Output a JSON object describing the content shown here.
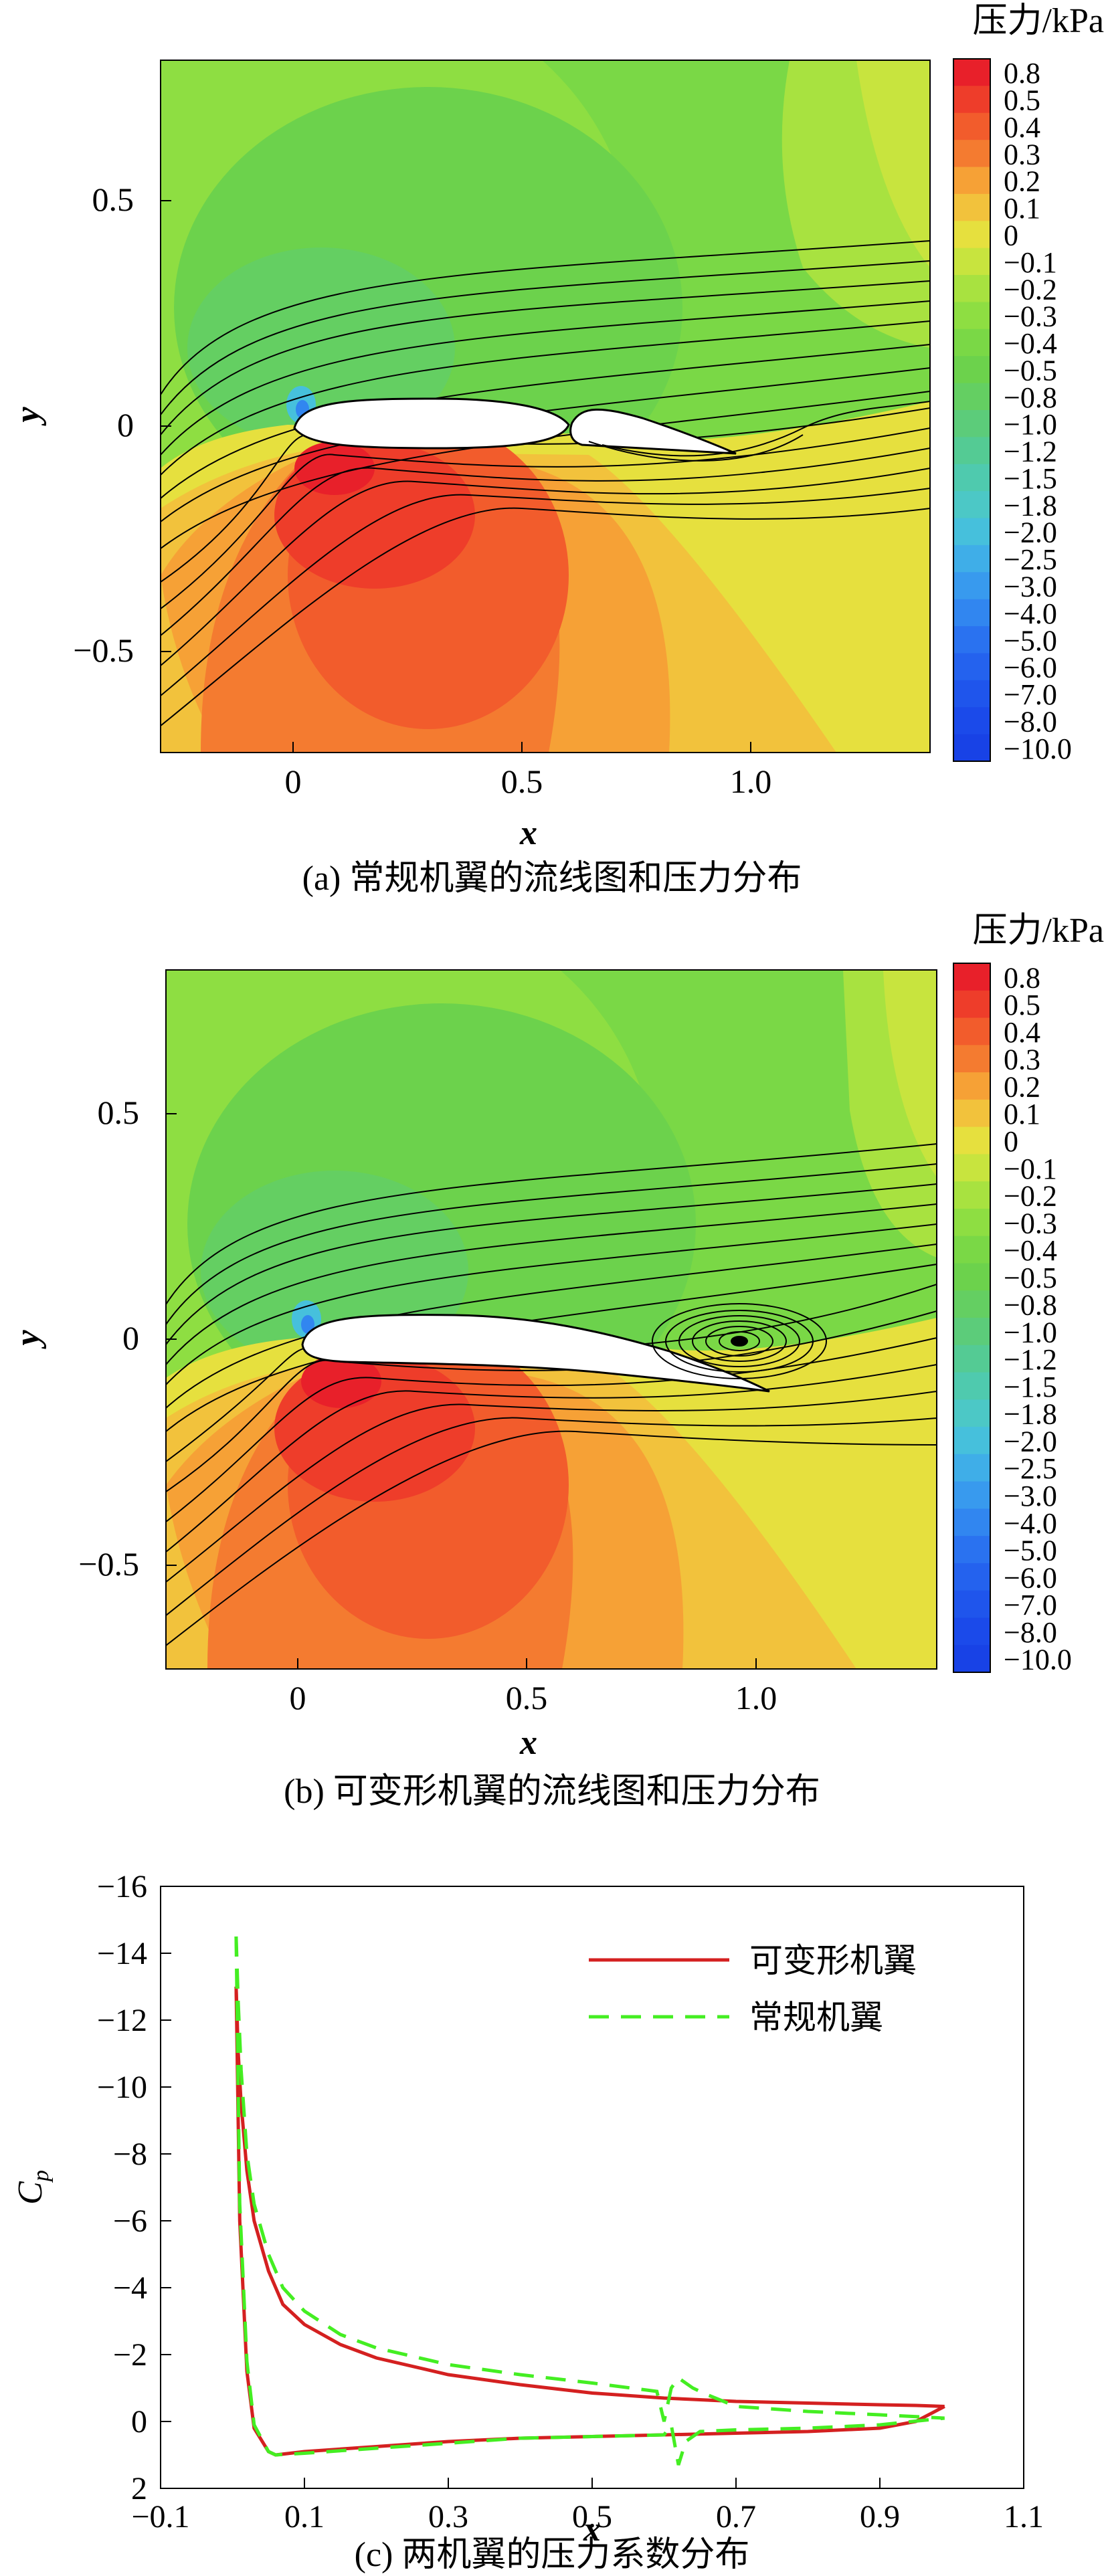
{
  "panels": {
    "a": {
      "caption": "(a) 常规机翼的流线图和压力分布",
      "colorbar_title": "压力/kPa",
      "xlabel": "x",
      "ylabel": "y",
      "xticks": [
        "0",
        "0.5",
        "1.0"
      ],
      "yticks": [
        "0.5",
        "0",
        "−0.5"
      ]
    },
    "b": {
      "caption": "(b) 可变形机翼的流线图和压力分布",
      "colorbar_title": "压力/kPa",
      "xlabel": "x",
      "ylabel": "y",
      "xticks": [
        "0",
        "0.5",
        "1.0"
      ],
      "yticks": [
        "0.5",
        "0",
        "−0.5"
      ]
    },
    "c": {
      "caption": "(c) 两机翼的压力系数分布"
    }
  },
  "colorbar": {
    "levels": [
      "0.8",
      "0.5",
      "0.4",
      "0.3",
      "0.2",
      "0.1",
      "0",
      "−0.1",
      "−0.2",
      "−0.3",
      "−0.4",
      "−0.5",
      "−0.8",
      "−1.0",
      "−1.2",
      "−1.5",
      "−1.8",
      "−2.0",
      "−2.5",
      "−3.0",
      "−4.0",
      "−5.0",
      "−6.0",
      "−7.0",
      "−8.0",
      "−10.0"
    ],
    "colors": [
      "#e8202a",
      "#ee3d2a",
      "#f25c2c",
      "#f47b30",
      "#f6a136",
      "#f2c23c",
      "#e6e03e",
      "#c8e43e",
      "#a8e240",
      "#8ede42",
      "#7ad846",
      "#6cd24c",
      "#64cf62",
      "#5ccc7a",
      "#54cb94",
      "#4fcaae",
      "#4cc8c6",
      "#46c0dc",
      "#3faee8",
      "#389aee",
      "#3186f0",
      "#2a72f0",
      "#2462ee",
      "#1f55ec",
      "#1b4aea",
      "#1842e6"
    ]
  },
  "chart_data": {
    "type": "line",
    "xlabel": "x",
    "ylabel": "C_p",
    "xlim": [
      -0.1,
      1.1
    ],
    "ylim": [
      -16,
      2
    ],
    "y_inverted": true,
    "xticks": [
      "−0.1",
      "0.1",
      "0.3",
      "0.5",
      "0.7",
      "0.9",
      "1.1"
    ],
    "yticks": [
      "−16",
      "−14",
      "−12",
      "−10",
      "−8",
      "−6",
      "−4",
      "−2",
      "0",
      "2"
    ],
    "legend_position": "top-right",
    "series": [
      {
        "name": "可变形机翼",
        "color": "#d42020",
        "style": "solid",
        "upper_x": [
          0.005,
          0.008,
          0.012,
          0.02,
          0.03,
          0.05,
          0.07,
          0.1,
          0.15,
          0.2,
          0.3,
          0.4,
          0.5,
          0.6,
          0.7,
          0.8,
          0.9,
          0.95,
          0.99
        ],
        "upper_y": [
          -13.0,
          -11.0,
          -9.5,
          -7.5,
          -6.0,
          -4.5,
          -3.5,
          -2.9,
          -2.3,
          -1.9,
          -1.4,
          -1.1,
          -0.85,
          -0.7,
          -0.6,
          -0.55,
          -0.5,
          -0.48,
          -0.45
        ],
        "lower_x": [
          0.005,
          0.01,
          0.02,
          0.03,
          0.05,
          0.06,
          0.1,
          0.2,
          0.3,
          0.4,
          0.5,
          0.6,
          0.7,
          0.8,
          0.9,
          0.95,
          0.99
        ],
        "lower_y": [
          -13.0,
          -6.0,
          -1.5,
          0.2,
          0.9,
          1.0,
          0.9,
          0.75,
          0.6,
          0.5,
          0.45,
          0.4,
          0.35,
          0.3,
          0.2,
          0.0,
          -0.45
        ]
      },
      {
        "name": "常规机翼",
        "color": "#44ee22",
        "style": "dashed",
        "upper_x": [
          0.005,
          0.008,
          0.012,
          0.02,
          0.03,
          0.05,
          0.07,
          0.1,
          0.15,
          0.2,
          0.3,
          0.4,
          0.5,
          0.59,
          0.6,
          0.61,
          0.62,
          0.64,
          0.66,
          0.7,
          0.8,
          0.9,
          0.99
        ],
        "upper_y": [
          -14.5,
          -12.5,
          -10.5,
          -8.0,
          -6.5,
          -5.0,
          -4.0,
          -3.3,
          -2.6,
          -2.2,
          -1.7,
          -1.4,
          -1.15,
          -0.9,
          0.0,
          -1.0,
          -1.3,
          -1.0,
          -0.8,
          -0.45,
          -0.3,
          -0.2,
          -0.1
        ],
        "lower_x": [
          0.005,
          0.01,
          0.02,
          0.03,
          0.05,
          0.06,
          0.1,
          0.2,
          0.3,
          0.4,
          0.5,
          0.6,
          0.61,
          0.62,
          0.63,
          0.65,
          0.7,
          0.8,
          0.9,
          0.99
        ],
        "lower_y": [
          -14.5,
          -6.5,
          -1.8,
          0.1,
          0.9,
          1.0,
          0.95,
          0.8,
          0.65,
          0.5,
          0.45,
          0.4,
          0.1,
          1.3,
          0.6,
          0.3,
          0.25,
          0.2,
          0.1,
          -0.1
        ]
      }
    ]
  }
}
